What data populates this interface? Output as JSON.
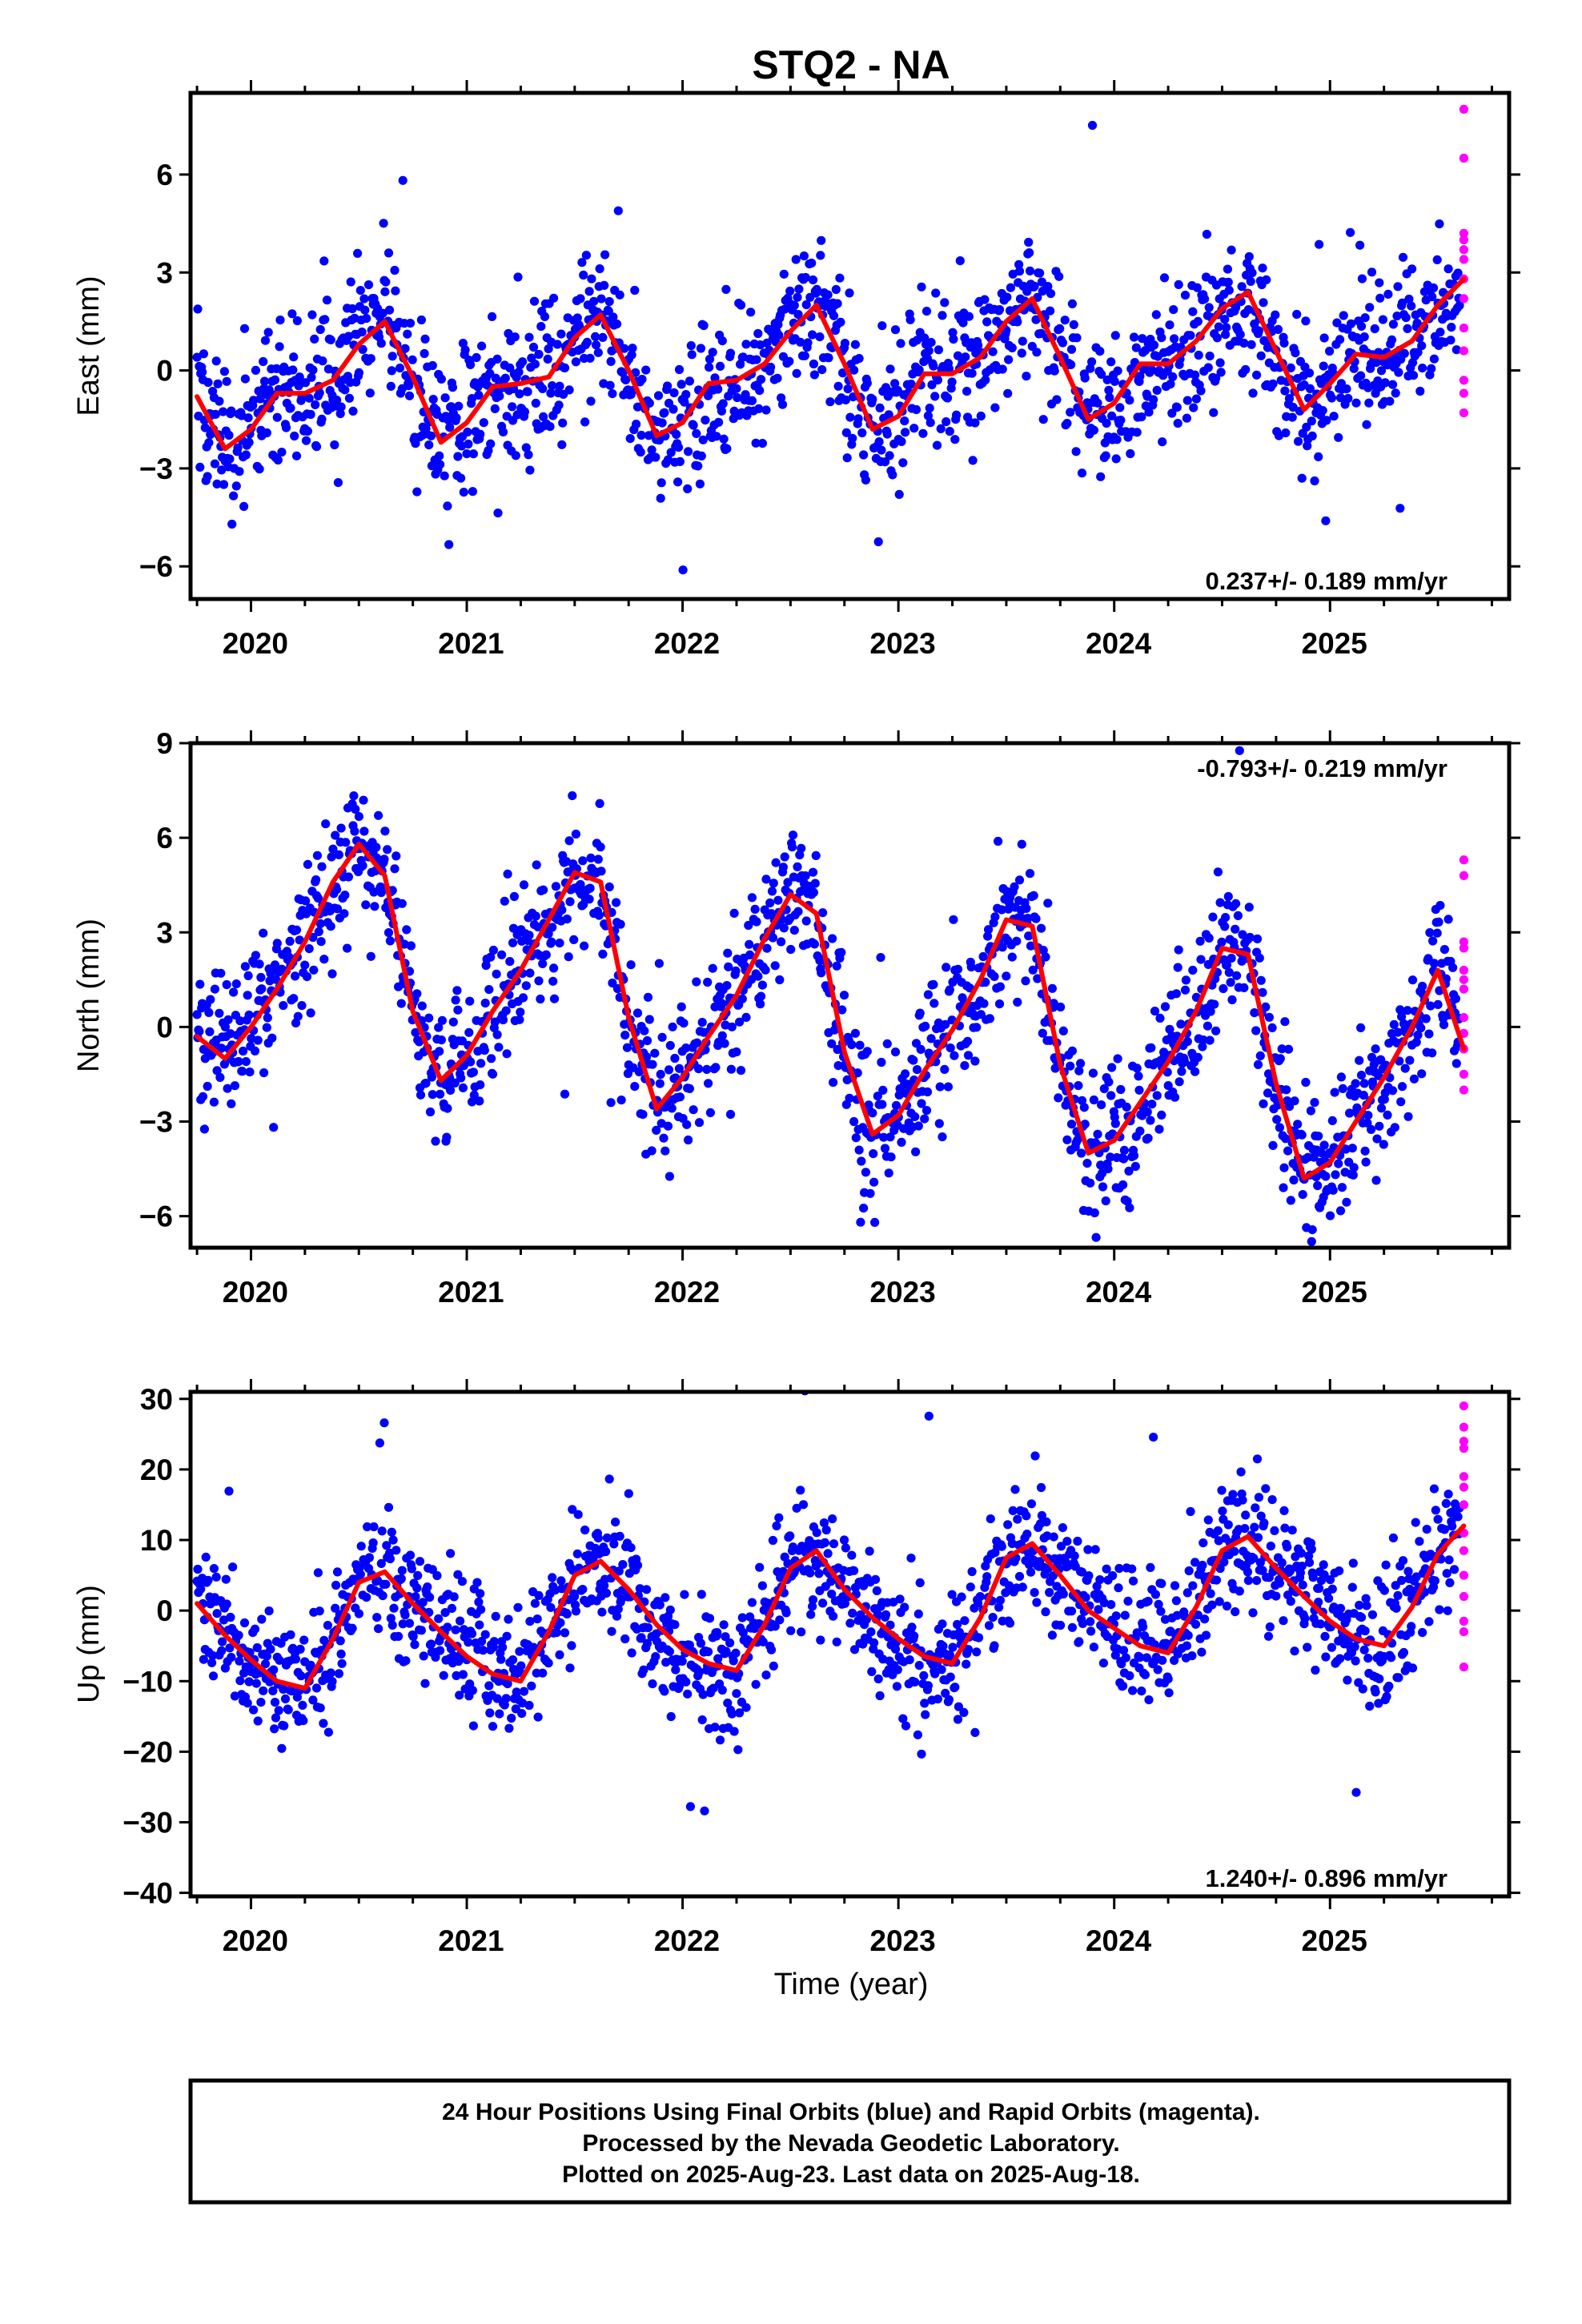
{
  "title": "STQ2 - NA",
  "colors": {
    "final": "#0000ff",
    "rapid": "#ff00ff",
    "model": "#ff0000",
    "frame": "#000000"
  },
  "chart_data": [
    {
      "type": "scatter",
      "name": "east",
      "ylabel": "East (mm)",
      "xlabel": "",
      "xlim": [
        2019.72,
        2025.83
      ],
      "ylim": [
        -7,
        8.5
      ],
      "yticks": [
        -6,
        -3,
        0,
        3,
        6
      ],
      "xticks": [
        2020,
        2021,
        2022,
        2023,
        2024,
        2025
      ],
      "rate_text": "0.237+/- 0.189 mm/yr",
      "rate_position": "bottom-right",
      "model": {
        "x": [
          2019.75,
          2019.88,
          2020.0,
          2020.12,
          2020.25,
          2020.38,
          2020.5,
          2020.62,
          2020.75,
          2020.88,
          2021.0,
          2021.12,
          2021.25,
          2021.38,
          2021.5,
          2021.62,
          2021.75,
          2021.88,
          2022.0,
          2022.12,
          2022.25,
          2022.38,
          2022.5,
          2022.62,
          2022.75,
          2022.88,
          2023.0,
          2023.12,
          2023.25,
          2023.38,
          2023.5,
          2023.62,
          2023.75,
          2023.88,
          2024.0,
          2024.12,
          2024.25,
          2024.38,
          2024.5,
          2024.62,
          2024.75,
          2024.88,
          2025.0,
          2025.12,
          2025.25,
          2025.38,
          2025.5,
          2025.62
        ],
        "y": [
          -0.8,
          -2.4,
          -1.8,
          -0.7,
          -0.7,
          -0.3,
          0.8,
          1.5,
          -0.2,
          -2.2,
          -1.6,
          -0.5,
          -0.4,
          -0.2,
          1.0,
          1.7,
          0.0,
          -2.0,
          -1.6,
          -0.4,
          -0.3,
          0.2,
          1.2,
          2.0,
          0.2,
          -1.8,
          -1.4,
          -0.1,
          -0.1,
          0.4,
          1.5,
          2.2,
          0.4,
          -1.5,
          -1.0,
          0.2,
          0.2,
          0.9,
          1.9,
          2.4,
          0.6,
          -1.2,
          -0.4,
          0.5,
          0.4,
          0.9,
          2.0,
          2.8
        ]
      },
      "final_points": {
        "count": 1700,
        "x_range": [
          2019.75,
          2025.6
        ],
        "scatter_sd": 1.1,
        "last_day": 2025.63
      },
      "rapid_points": {
        "x": 2025.62,
        "values": [
          8.0,
          6.5,
          4.2,
          4.0,
          3.7,
          3.4,
          2.8,
          2.2,
          1.3,
          0.6,
          -0.3,
          -0.7,
          -1.3
        ]
      }
    },
    {
      "type": "scatter",
      "name": "north",
      "ylabel": "North (mm)",
      "xlabel": "",
      "xlim": [
        2019.72,
        2025.83
      ],
      "ylim": [
        -7,
        9
      ],
      "yticks": [
        -6,
        -3,
        0,
        3,
        6,
        9
      ],
      "xticks": [
        2020,
        2021,
        2022,
        2023,
        2024,
        2025
      ],
      "rate_text": "-0.793+/- 0.219 mm/yr",
      "rate_position": "top-right",
      "model": {
        "x": [
          2019.75,
          2019.88,
          2020.0,
          2020.12,
          2020.25,
          2020.38,
          2020.5,
          2020.62,
          2020.75,
          2020.88,
          2021.0,
          2021.12,
          2021.25,
          2021.38,
          2021.5,
          2021.62,
          2021.75,
          2021.88,
          2022.0,
          2022.12,
          2022.25,
          2022.38,
          2022.5,
          2022.62,
          2022.75,
          2022.88,
          2023.0,
          2023.12,
          2023.25,
          2023.38,
          2023.5,
          2023.62,
          2023.75,
          2023.88,
          2024.0,
          2024.12,
          2024.25,
          2024.38,
          2024.5,
          2024.62,
          2024.75,
          2024.88,
          2025.0,
          2025.12,
          2025.25,
          2025.38,
          2025.5,
          2025.62
        ],
        "y": [
          -0.3,
          -1.0,
          0.0,
          1.2,
          2.7,
          4.6,
          5.8,
          4.8,
          0.5,
          -1.7,
          -0.9,
          0.5,
          1.8,
          3.4,
          4.9,
          4.6,
          0.3,
          -2.6,
          -1.6,
          -0.3,
          1.0,
          2.8,
          4.2,
          3.6,
          -0.8,
          -3.4,
          -2.8,
          -1.4,
          -0.1,
          1.5,
          3.4,
          3.2,
          -1.2,
          -4.0,
          -3.6,
          -2.4,
          -1.1,
          0.5,
          2.5,
          2.3,
          -1.8,
          -4.8,
          -4.3,
          -3.0,
          -1.6,
          0.0,
          1.8,
          -0.7
        ]
      },
      "final_points": {
        "count": 1700,
        "x_range": [
          2019.75,
          2025.6
        ],
        "scatter_sd": 1.1,
        "last_day": 2025.63
      },
      "rapid_points": {
        "x": 2025.62,
        "values": [
          5.3,
          4.8,
          2.7,
          2.5,
          1.8,
          1.5,
          1.2,
          0.3,
          -0.2,
          -0.7,
          -1.5,
          -2.0
        ]
      }
    },
    {
      "type": "scatter",
      "name": "up",
      "ylabel": "Up (mm)",
      "xlabel": "Time (year)",
      "xlim": [
        2019.72,
        2025.83
      ],
      "ylim": [
        -40.5,
        31
      ],
      "yticks": [
        -40,
        -30,
        -20,
        -10,
        0,
        10,
        20,
        30
      ],
      "xticks": [
        2020,
        2021,
        2022,
        2023,
        2024,
        2025
      ],
      "rate_text": "1.240+/- 0.896 mm/yr",
      "rate_position": "bottom-right",
      "model": {
        "x": [
          2019.75,
          2019.88,
          2020.0,
          2020.12,
          2020.25,
          2020.38,
          2020.5,
          2020.62,
          2020.75,
          2020.88,
          2021.0,
          2021.12,
          2021.25,
          2021.38,
          2021.5,
          2021.62,
          2021.75,
          2021.88,
          2022.0,
          2022.12,
          2022.25,
          2022.38,
          2022.5,
          2022.62,
          2022.75,
          2022.88,
          2023.0,
          2023.12,
          2023.25,
          2023.38,
          2023.5,
          2023.62,
          2023.75,
          2023.88,
          2024.0,
          2024.12,
          2024.25,
          2024.38,
          2024.5,
          2024.62,
          2024.75,
          2024.88,
          2025.0,
          2025.12,
          2025.25,
          2025.38,
          2025.5,
          2025.62
        ],
        "y": [
          1.0,
          -3.5,
          -7.0,
          -10.0,
          -11.0,
          -4.0,
          4.0,
          5.5,
          1.0,
          -3.0,
          -6.5,
          -9.0,
          -10.0,
          -3.0,
          5.0,
          7.0,
          3.0,
          -2.0,
          -5.5,
          -7.5,
          -8.5,
          -2.0,
          6.0,
          8.5,
          3.0,
          -1.0,
          -4.0,
          -6.5,
          -7.5,
          -1.0,
          7.5,
          9.5,
          5.0,
          0.0,
          -2.5,
          -5.0,
          -6.0,
          0.5,
          8.5,
          10.5,
          6.0,
          2.0,
          -1.5,
          -4.0,
          -5.0,
          0.5,
          8.0,
          12.0
        ]
      },
      "final_points": {
        "count": 1700,
        "x_range": [
          2019.75,
          2025.6
        ],
        "scatter_sd": 4.6,
        "last_day": 2025.63
      },
      "rapid_points": {
        "x": 2025.62,
        "values": [
          29.0,
          26.0,
          24.0,
          23.0,
          19.0,
          17.5,
          15.0,
          11.0,
          8.5,
          5.0,
          2.0,
          -1.5,
          -3.0,
          -8.0
        ]
      }
    }
  ],
  "footer": {
    "line1": "24 Hour Positions Using Final Orbits (blue) and Rapid Orbits (magenta).",
    "line2": "Processed by the Nevada Geodetic Laboratory.",
    "line3": "Plotted on 2025-Aug-23. Last data on 2025-Aug-18."
  }
}
